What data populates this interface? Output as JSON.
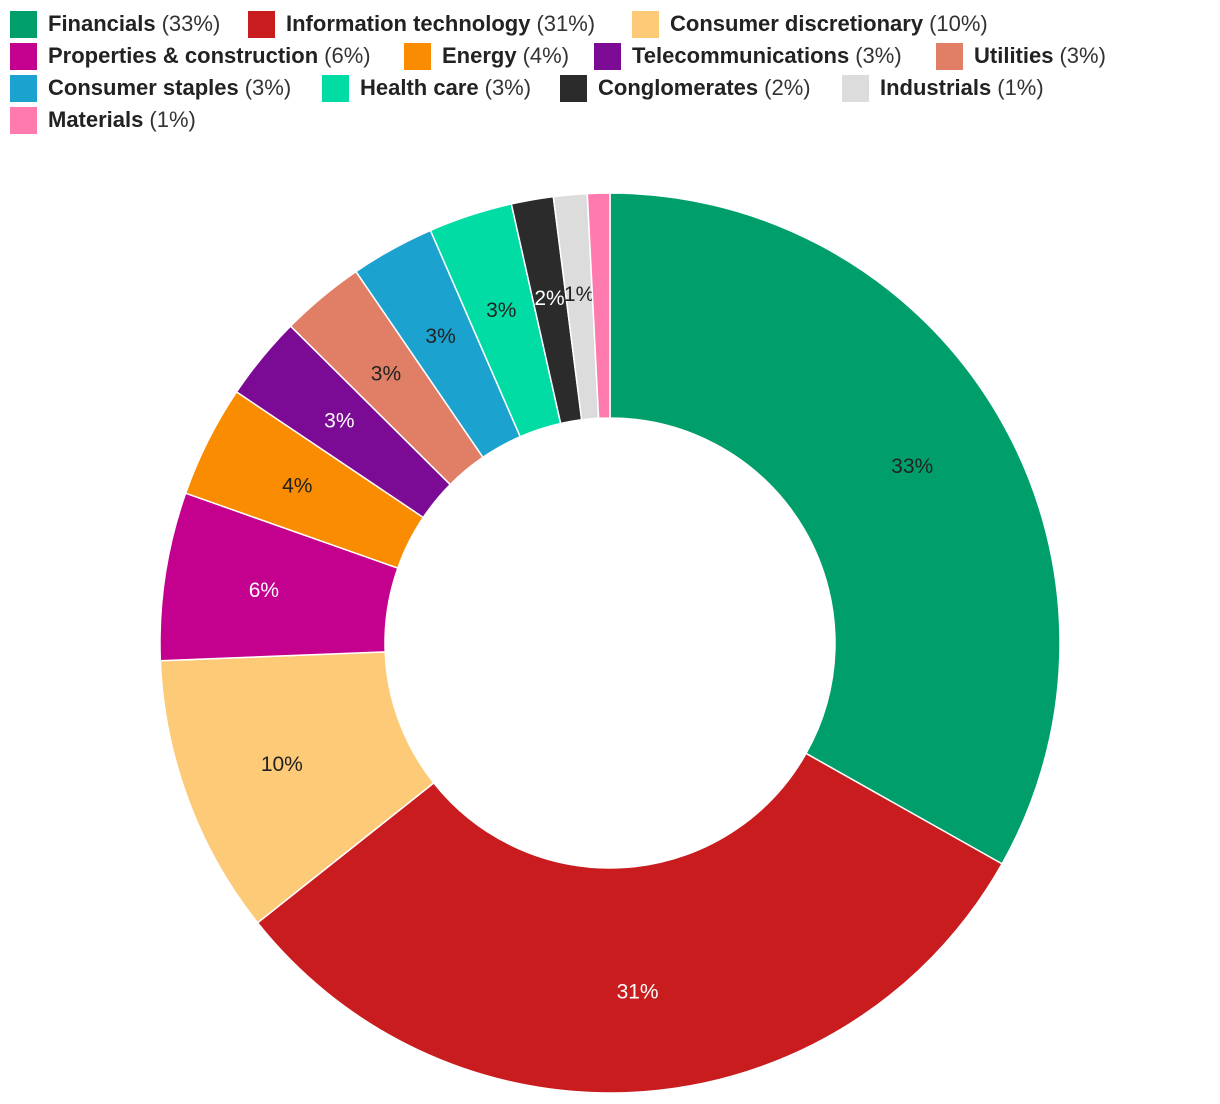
{
  "chart_data": {
    "type": "pie",
    "donut": true,
    "legend_position": "top-left",
    "series": [
      {
        "name": "Financials",
        "value": 33,
        "legend_value": "(33%)",
        "label": "33%",
        "color": "#009E6B",
        "label_color": "#222222"
      },
      {
        "name": "Information technology",
        "value": 31,
        "legend_value": "(31%)",
        "label": "31%",
        "color": "#C81C1E",
        "label_color": "#ffffff"
      },
      {
        "name": "Consumer discretionary",
        "value": 10,
        "legend_value": "(10%)",
        "label": "10%",
        "color": "#FDCA78",
        "label_color": "#222222"
      },
      {
        "name": "Properties & construction",
        "value": 6,
        "legend_value": "(6%)",
        "label": "6%",
        "color": "#C4008E",
        "label_color": "#ffffff"
      },
      {
        "name": "Energy",
        "value": 4,
        "legend_value": "(4%)",
        "label": "4%",
        "color": "#F98C00",
        "label_color": "#222222"
      },
      {
        "name": "Telecommunications",
        "value": 3,
        "legend_value": "(3%)",
        "label": "3%",
        "color": "#7B0A94",
        "label_color": "#ffffff"
      },
      {
        "name": "Utilities",
        "value": 3,
        "legend_value": "(3%)",
        "label": "3%",
        "color": "#E07E66",
        "label_color": "#222222"
      },
      {
        "name": "Consumer staples",
        "value": 3,
        "legend_value": "(3%)",
        "label": "3%",
        "color": "#1CA2CE",
        "label_color": "#222222"
      },
      {
        "name": "Health care",
        "value": 3,
        "legend_value": "(3%)",
        "label": "3%",
        "color": "#00DCA4",
        "label_color": "#222222"
      },
      {
        "name": "Conglomerates",
        "value": 1.5,
        "legend_value": "(2%)",
        "label": "2%",
        "color": "#2B2B2B",
        "label_color": "#ffffff"
      },
      {
        "name": "Industrials",
        "value": 1.2,
        "legend_value": "(1%)",
        "label": "1%",
        "color": "#DCDCDC",
        "label_color": "#222222"
      },
      {
        "name": "Materials",
        "value": 0.8,
        "legend_value": "(1%)",
        "label": "",
        "color": "#FF7AAE",
        "label_color": "#222222"
      }
    ]
  }
}
